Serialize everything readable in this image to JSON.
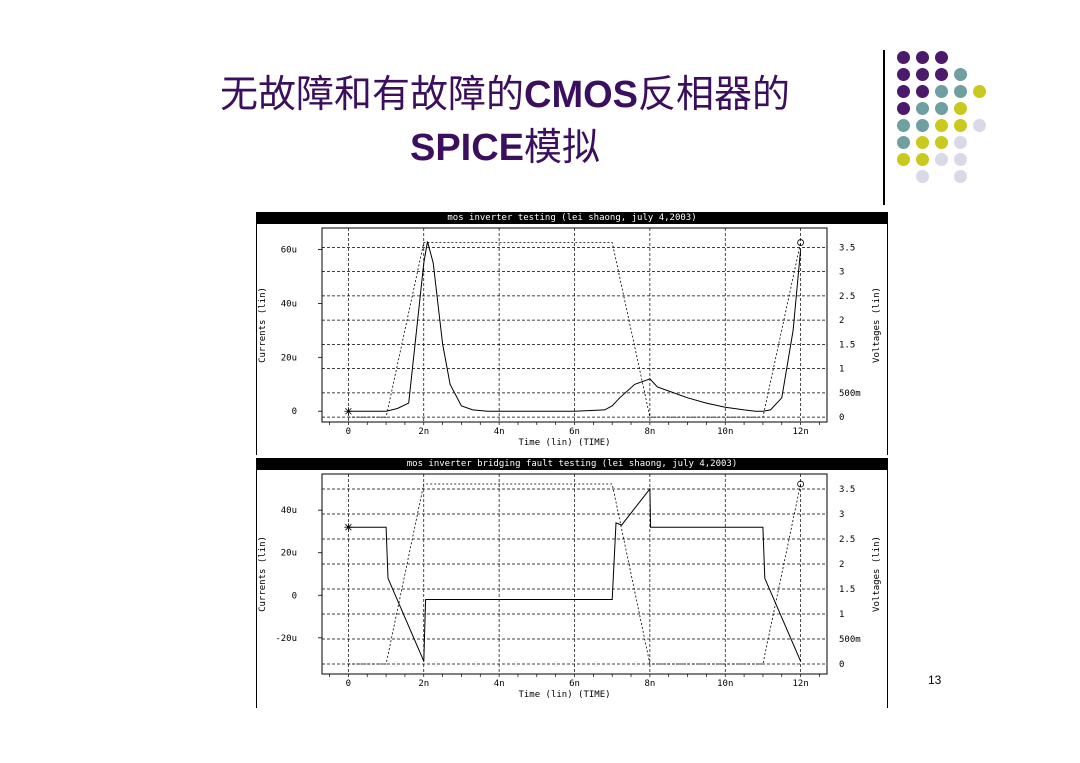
{
  "slide": {
    "title_line1_a": "无故障和有故障的",
    "title_line1_b": "CMOS",
    "title_line1_c": "反相器的",
    "title_line2_a": "SPICE",
    "title_line2_b": "模拟",
    "page_number": "13",
    "title_color": "#3b0f5e"
  },
  "dot_colors": [
    "#4b1a6b",
    "#6f9fa0",
    "#c9c91e",
    "#d9d9e8"
  ],
  "chart_data": [
    {
      "type": "line",
      "title": "mos inverter testing (lei shaong, july 4,2003)",
      "xlabel": "Time (lin) (TIME)",
      "ylabel": "Currents (lin)",
      "y2label": "Voltages (lin)",
      "xlim": [
        -0.7,
        12.7
      ],
      "ylim": [
        -4,
        68
      ],
      "y2lim": [
        -0.1,
        3.9
      ],
      "x_ticks": [
        "0",
        "2n",
        "4n",
        "6n",
        "8n",
        "10n",
        "12n"
      ],
      "x_tick_values": [
        0,
        2,
        4,
        6,
        8,
        10,
        12
      ],
      "y_ticks": [
        "0",
        "20u",
        "40u",
        "60u"
      ],
      "y_tick_values": [
        0,
        20,
        40,
        60
      ],
      "y2_ticks": [
        "0",
        "500m",
        "1",
        "1.5",
        "2",
        "2.5",
        "3",
        "3.5"
      ],
      "y2_tick_values": [
        0,
        0.5,
        1,
        1.5,
        2,
        2.5,
        3,
        3.5
      ],
      "grid": true,
      "series": [
        {
          "axis": "left",
          "style": "solid",
          "x": [
            0,
            1,
            1.3,
            1.6,
            2,
            2.1,
            2.25,
            2.5,
            2.7,
            3,
            3.3,
            3.7,
            4,
            5,
            6,
            6.8,
            7,
            7.2,
            7.6,
            8,
            8.2,
            8.6,
            9,
            9.5,
            10,
            10.5,
            10.8,
            11,
            11.2,
            11.5,
            11.8,
            12
          ],
          "values": [
            0,
            0,
            1,
            3,
            55,
            63,
            55,
            25,
            10,
            2,
            0.5,
            0,
            0,
            0,
            0,
            0.5,
            2,
            5,
            10,
            12,
            9,
            7,
            5,
            3,
            1.5,
            0.5,
            0,
            0,
            0.5,
            5,
            30,
            60
          ]
        },
        {
          "axis": "right",
          "style": "dotted",
          "x": [
            0,
            1,
            2,
            7,
            8,
            11,
            12
          ],
          "values": [
            0,
            0,
            3.6,
            3.6,
            0,
            0,
            3.6
          ]
        }
      ]
    },
    {
      "type": "line",
      "title": "mos inverter bridging fault testing (lei shaong, july 4,2003)",
      "xlabel": "Time (lin) (TIME)",
      "ylabel": "Currents (lin)",
      "y2label": "Voltages (lin)",
      "xlim": [
        -0.7,
        12.7
      ],
      "ylim": [
        -37,
        57
      ],
      "y2lim": [
        -0.2,
        3.8
      ],
      "x_ticks": [
        "0",
        "2n",
        "4n",
        "6n",
        "8n",
        "10n",
        "12n"
      ],
      "x_tick_values": [
        0,
        2,
        4,
        6,
        8,
        10,
        12
      ],
      "y_ticks": [
        "-20u",
        "0",
        "20u",
        "40u"
      ],
      "y_tick_values": [
        -20,
        0,
        20,
        40
      ],
      "y2_ticks": [
        "0",
        "500m",
        "1",
        "1.5",
        "2",
        "2.5",
        "3",
        "3.5"
      ],
      "y2_tick_values": [
        0,
        0.5,
        1,
        1.5,
        2,
        2.5,
        3,
        3.5
      ],
      "grid": true,
      "series": [
        {
          "axis": "left",
          "style": "solid",
          "x": [
            0,
            1,
            1.05,
            2,
            2.05,
            7,
            7.1,
            7.25,
            8,
            8.02,
            11,
            11.05,
            12
          ],
          "values": [
            32,
            32,
            8,
            -31,
            -2,
            -2,
            34,
            33,
            50,
            32,
            32,
            8,
            -31
          ]
        },
        {
          "axis": "right",
          "style": "dotted",
          "x": [
            0,
            1,
            2,
            7,
            8,
            11,
            12
          ],
          "values": [
            0,
            0,
            3.6,
            3.6,
            0,
            0,
            3.6
          ]
        }
      ]
    }
  ]
}
